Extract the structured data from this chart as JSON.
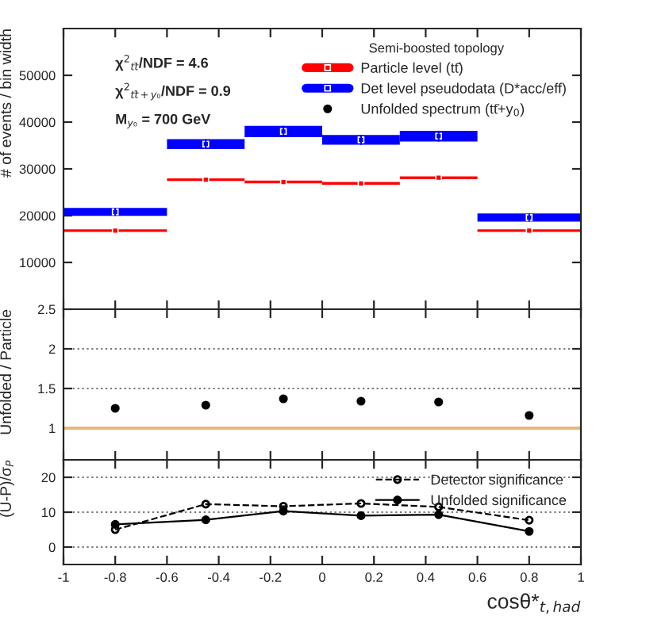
{
  "chart_data": [
    {
      "type": "scatter",
      "ylabel": "# of events / bin width",
      "legend_title": "Semi-boosted topology",
      "legend": "top right",
      "tick_labels": "y",
      "series": [
        {
          "name": "Particle level (tt̄)",
          "color": "#ff0000",
          "x": [
            -0.8,
            -0.45,
            -0.15,
            0.15,
            0.45,
            0.8
          ],
          "values": [
            16800,
            27700,
            27200,
            26900,
            28100,
            16800
          ],
          "xerrors": [
            0.2,
            0.15,
            0.15,
            0.15,
            0.15,
            0.2
          ]
        },
        {
          "name": "Det level pseudodata (D*acc/eff)",
          "color": "#0000ff",
          "x": [
            -0.8,
            -0.45,
            -0.15,
            0.15,
            0.45,
            0.8
          ],
          "values": [
            20800,
            35300,
            38000,
            36200,
            37000,
            19600
          ],
          "xerrors": [
            0.2,
            0.15,
            0.15,
            0.15,
            0.15,
            0.2
          ],
          "errors": [
            850,
            1050,
            1200,
            1050,
            1150,
            850
          ]
        },
        {
          "name": "Unfolded spectrum (tt̄+y$_{0}$)",
          "type": "scatter",
          "color": "#000000",
          "marker": "circle"
        }
      ],
      "annotations": [
        "χ$^{2}$$_{tt̄}$/NDF = 4.6",
        "χ$^{2}$$_{tt̄+y₀}$/NDF = 0.9",
        "M$_{y₀}$ = 700 GeV"
      ],
      "xlim": [
        -1,
        1
      ],
      "xticks": [
        -1,
        -0.8,
        -0.6,
        -0.4,
        -0.2,
        0,
        0.2,
        0.4,
        0.6,
        0.8,
        1
      ],
      "ylim": [
        0,
        60000
      ],
      "yticks": [
        10000,
        20000,
        30000,
        40000,
        50000
      ]
    },
    {
      "type": "scatter",
      "ylabel": "Unfolded / Particle",
      "tick_labels": "y",
      "grid": "y",
      "marker": "circle",
      "x": [
        -0.8,
        -0.45,
        -0.15,
        0.15,
        0.45,
        0.8
      ],
      "series": [
        {
          "color": "#000000",
          "values": [
            1.25,
            1.29,
            1.37,
            1.34,
            1.33,
            1.16
          ],
          "errors": [
            0.025,
            0.025,
            0.025,
            0.025,
            0.025,
            0.025
          ]
        }
      ],
      "ref_lines": [
        {
          "axis": "y",
          "value": 1,
          "color": "#e8b87a"
        }
      ],
      "xlim": [
        -1,
        1
      ],
      "xticks": [
        -1,
        -0.8,
        -0.6,
        -0.4,
        -0.2,
        0,
        0.2,
        0.4,
        0.6,
        0.8,
        1
      ],
      "ylim": [
        0.6,
        2.5
      ],
      "yticks": [
        1,
        1.5,
        2,
        2.5
      ]
    },
    {
      "type": "line",
      "xlabel": "cosθ*$_{t,had}$",
      "ylabel": "(U-P)/σ$_{P}$",
      "grid": "y",
      "legend": "top right",
      "marker": "circle",
      "x": [
        -0.8,
        -0.45,
        -0.15,
        0.15,
        0.45,
        0.8
      ],
      "series": [
        {
          "name": "Detector significance",
          "color": "#000000",
          "line_style": "dashed",
          "values": [
            5,
            12.3,
            11.7,
            12.5,
            11.5,
            7.7
          ]
        },
        {
          "name": "Unfolded significance",
          "color": "#000000",
          "line_style": "solid",
          "values": [
            6.5,
            7.8,
            10.3,
            9,
            9.3,
            4.5
          ],
          "errors": [
            1,
            1,
            0.8,
            0.8,
            0.8,
            1
          ]
        }
      ],
      "xlim": [
        -1,
        1
      ],
      "xticks": [
        -1,
        -0.8,
        -0.6,
        -0.4,
        -0.2,
        0,
        0.2,
        0.4,
        0.6,
        0.8,
        1
      ],
      "ylim": [
        -5,
        25
      ],
      "yticks": [
        0,
        10,
        20
      ]
    }
  ]
}
